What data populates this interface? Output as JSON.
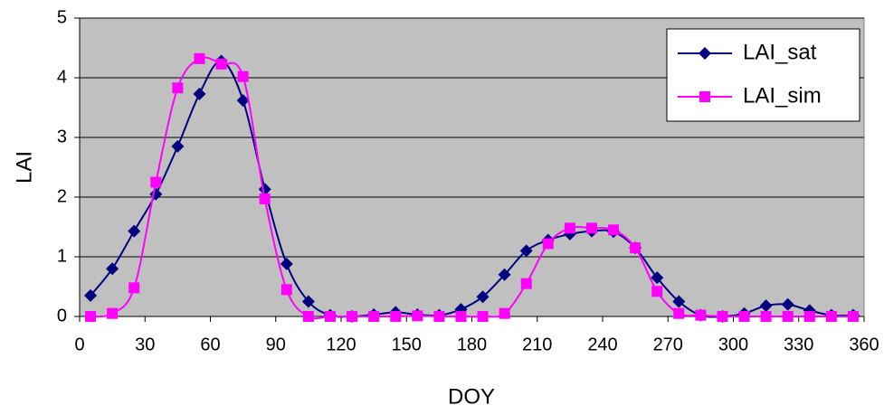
{
  "chart_data": {
    "type": "line",
    "x_label": "DOY",
    "y_label": "LAI",
    "x": [
      5,
      15,
      25,
      35,
      45,
      55,
      65,
      75,
      85,
      95,
      105,
      115,
      125,
      135,
      145,
      155,
      165,
      175,
      185,
      195,
      205,
      215,
      225,
      235,
      245,
      255,
      265,
      275,
      285,
      295,
      305,
      315,
      325,
      335,
      345,
      355
    ],
    "series": [
      {
        "name": "LAI_sat",
        "color": "#000080",
        "marker": "diamond",
        "values": [
          0.35,
          0.8,
          1.43,
          2.05,
          2.85,
          3.73,
          4.28,
          3.62,
          2.13,
          0.88,
          0.25,
          0.02,
          0,
          0.03,
          0.07,
          0.03,
          0.02,
          0.12,
          0.33,
          0.7,
          1.1,
          1.28,
          1.38,
          1.43,
          1.42,
          1.15,
          0.65,
          0.25,
          0.02,
          0,
          0.05,
          0.18,
          0.2,
          0.1,
          0.02,
          0.02
        ]
      },
      {
        "name": "LAI_sim",
        "color": "#ff00ff",
        "marker": "square",
        "values": [
          0,
          0.05,
          0.48,
          2.25,
          3.83,
          4.32,
          4.23,
          4.02,
          1.97,
          0.45,
          0,
          0,
          0,
          0,
          0,
          0.01,
          0,
          0,
          0,
          0.05,
          0.55,
          1.22,
          1.48,
          1.48,
          1.45,
          1.15,
          0.42,
          0.05,
          0.02,
          0,
          0,
          0,
          0,
          0,
          0,
          0
        ]
      }
    ],
    "xlim": [
      0,
      360
    ],
    "xticks": [
      0,
      30,
      60,
      90,
      120,
      150,
      180,
      210,
      240,
      270,
      300,
      330,
      360
    ],
    "ylim": [
      0,
      5
    ],
    "yticks": [
      0,
      1,
      2,
      3,
      4,
      5
    ],
    "grid": true,
    "legend": "top-right",
    "smooth": true
  }
}
